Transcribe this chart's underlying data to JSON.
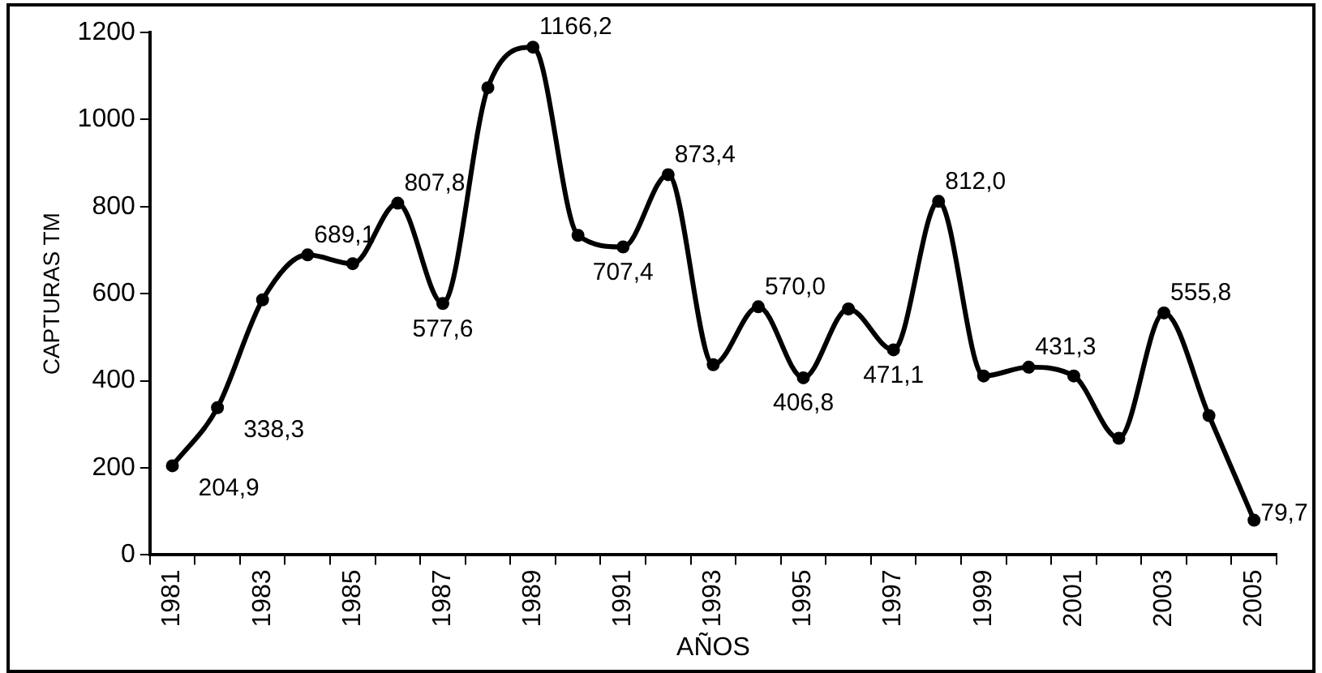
{
  "chart_data": {
    "type": "line",
    "xlabel": "AÑOS",
    "ylabel": "CAPTURAS TM",
    "categories": [
      "1981",
      null,
      "1983",
      null,
      "1985",
      null,
      "1987",
      null,
      "1989",
      null,
      "1991",
      null,
      "1993",
      null,
      "1995",
      null,
      "1997",
      null,
      "1999",
      null,
      "2001",
      null,
      "2003",
      null,
      "2005"
    ],
    "series": [
      {
        "color": "#000000",
        "values": [
          204.9,
          338.3,
          586,
          689.1,
          669,
          807.8,
          577.6,
          1073,
          1166.2,
          734,
          707.4,
          873.4,
          437,
          570.0,
          406.8,
          565,
          471.1,
          812.0,
          411,
          431.3,
          411,
          268,
          555.8,
          320,
          79.7
        ],
        "value_labels": [
          "204,9",
          "338,3",
          null,
          "689,1",
          null,
          "807,8",
          "577,6",
          null,
          "1166,2",
          null,
          "707,4",
          "873,4",
          null,
          "570,0",
          "406,8",
          null,
          "471,1",
          "812,0",
          null,
          "431,3",
          null,
          null,
          "555,8",
          null,
          "79,7"
        ]
      }
    ],
    "ylim": [
      0,
      1200
    ],
    "yticks": [
      0,
      200,
      400,
      600,
      800,
      1000,
      1200
    ],
    "grid": false,
    "legend": false,
    "marker": "circle",
    "line_style": "solid"
  }
}
